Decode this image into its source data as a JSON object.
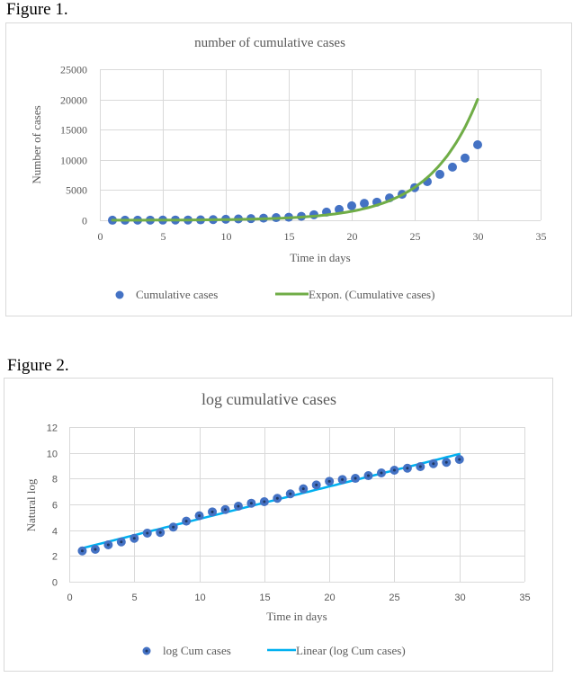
{
  "chart_data": [
    {
      "figure_label": "Figure 1.",
      "type": "scatter",
      "title": "number of cumulative cases",
      "xlabel": "Time in days",
      "ylabel": "Number of cases",
      "xlim": [
        0,
        35
      ],
      "ylim": [
        0,
        25000
      ],
      "xticks": [
        "0",
        "5",
        "10",
        "15",
        "20",
        "25",
        "30",
        "35"
      ],
      "yticks": [
        "0",
        "5000",
        "10000",
        "15000",
        "20000",
        "25000"
      ],
      "grid": true,
      "legend_position": "bottom",
      "colors": {
        "points": "#4472c4",
        "trend": "#70ad47"
      },
      "series": [
        {
          "name": "Cumulative cases",
          "kind": "points",
          "x": [
            1,
            2,
            3,
            4,
            5,
            6,
            7,
            8,
            9,
            10,
            11,
            12,
            13,
            14,
            15,
            16,
            17,
            18,
            19,
            20,
            21,
            22,
            23,
            24,
            25,
            26,
            27,
            28,
            29,
            30
          ],
          "y": [
            11,
            13,
            18,
            23,
            30,
            44,
            46,
            70,
            110,
            167,
            226,
            270,
            350,
            440,
            500,
            650,
            920,
            1350,
            1800,
            2400,
            2800,
            3000,
            3700,
            4300,
            5400,
            6400,
            7600,
            8800,
            10300,
            12500
          ]
        },
        {
          "name": "Expon. (Cumulative cases)",
          "kind": "exponential-trend",
          "equation": {
            "a": 8.2,
            "b": 0.26
          },
          "x_range": [
            1,
            30
          ]
        }
      ]
    },
    {
      "figure_label": "Figure 2.",
      "type": "scatter",
      "title": "log cumulative cases",
      "xlabel": "Time in days",
      "ylabel": "Natural log",
      "xlim": [
        0,
        35
      ],
      "ylim": [
        0,
        12
      ],
      "xticks": [
        "0",
        "5",
        "10",
        "15",
        "20",
        "25",
        "30",
        "35"
      ],
      "yticks": [
        "0",
        "2",
        "4",
        "6",
        "8",
        "10",
        "12"
      ],
      "grid": true,
      "legend_position": "bottom",
      "colors": {
        "points": "#4472c4",
        "points_center": "#1f3864",
        "trend": "#00b0f0"
      },
      "series": [
        {
          "name": "log Cum cases",
          "kind": "points",
          "x": [
            1,
            2,
            3,
            4,
            5,
            6,
            7,
            8,
            9,
            10,
            11,
            12,
            13,
            14,
            15,
            16,
            17,
            18,
            19,
            20,
            21,
            22,
            23,
            24,
            25,
            26,
            27,
            28,
            29,
            30
          ],
          "y": [
            2.39,
            2.51,
            2.86,
            3.09,
            3.37,
            3.77,
            3.82,
            4.24,
            4.7,
            5.12,
            5.42,
            5.6,
            5.86,
            6.09,
            6.21,
            6.47,
            6.82,
            7.21,
            7.51,
            7.79,
            7.93,
            8.02,
            8.23,
            8.44,
            8.65,
            8.81,
            8.93,
            9.16,
            9.26,
            9.49
          ]
        },
        {
          "name": "Linear (log Cum cases)",
          "kind": "linear-trend",
          "equation": {
            "slope": 0.252,
            "intercept": 2.35
          },
          "x_range": [
            1,
            30
          ]
        }
      ]
    }
  ]
}
